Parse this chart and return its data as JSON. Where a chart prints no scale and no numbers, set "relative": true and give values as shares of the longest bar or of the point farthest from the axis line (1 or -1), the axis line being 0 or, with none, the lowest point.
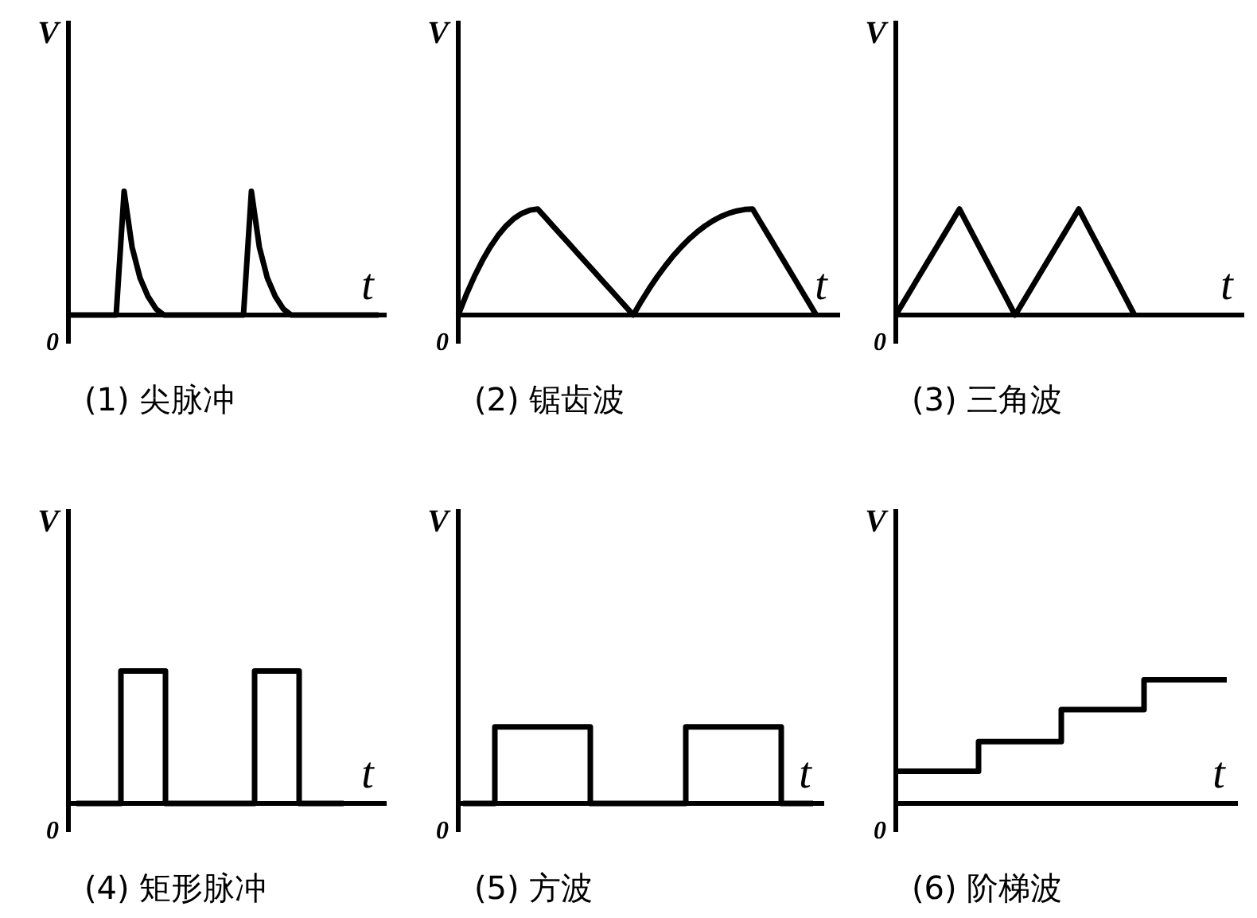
{
  "chart_data": [
    {
      "type": "line",
      "title": "(1) 尖脉冲",
      "xlabel": "t",
      "ylabel": "V",
      "annotations": [
        "0"
      ],
      "relative": true,
      "categories": [
        null,
        null,
        null,
        null,
        null,
        null,
        null,
        null,
        null,
        null,
        null,
        null,
        null,
        null,
        null,
        null,
        null,
        null,
        null,
        null,
        null,
        null,
        null,
        null,
        null,
        null,
        null,
        null,
        null,
        null,
        null,
        null,
        null,
        null,
        null,
        null,
        null,
        null,
        null,
        null
      ],
      "series": [
        {
          "color": "#000000",
          "values": [
            0,
            0,
            0,
            0,
            0,
            0,
            0,
            1,
            0.55,
            0.3,
            0.15,
            0.05,
            0,
            0,
            0,
            0,
            0,
            0,
            0,
            0,
            0,
            0,
            0,
            1,
            0.55,
            0.3,
            0.15,
            0.05,
            0,
            0,
            0,
            0,
            0,
            0,
            0,
            0,
            0,
            0,
            0,
            0
          ]
        }
      ]
    },
    {
      "type": "line",
      "title": "(2) 锯齿波",
      "xlabel": "t",
      "ylabel": "V",
      "annotations": [
        "0"
      ],
      "relative": true,
      "categories": [
        null,
        null,
        null,
        null,
        null,
        null,
        null,
        null,
        null,
        null,
        null,
        null,
        null,
        null,
        null,
        null,
        null,
        null,
        null,
        null,
        null,
        null,
        null,
        null,
        null,
        null,
        null,
        null,
        null,
        null,
        null,
        null,
        null,
        null,
        null,
        null,
        null,
        null,
        null,
        null,
        null,
        null,
        null,
        null,
        null,
        null
      ],
      "series": [
        {
          "color": "#000000",
          "values": [
            0,
            0.19,
            0.36,
            0.51,
            0.64,
            0.75,
            0.84,
            0.91,
            0.96,
            0.99,
            1,
            0.917,
            0.833,
            0.75,
            0.667,
            0.583,
            0.5,
            0.417,
            0.333,
            0.25,
            0.167,
            0.083,
            0,
            0.129,
            0.249,
            0.36,
            0.462,
            0.556,
            0.64,
            0.716,
            0.782,
            0.84,
            0.889,
            0.929,
            0.96,
            0.982,
            0.996,
            1,
            0.875,
            0.75,
            0.625,
            0.5,
            0.375,
            0.25,
            0.125,
            0
          ]
        }
      ]
    },
    {
      "type": "line",
      "title": "(3) 三角波",
      "xlabel": "t",
      "ylabel": "V",
      "annotations": [
        "0"
      ],
      "relative": true,
      "categories": [
        null,
        null,
        null,
        null,
        null,
        null,
        null,
        null,
        null,
        null,
        null,
        null,
        null,
        null,
        null,
        null,
        null,
        null,
        null,
        null,
        null,
        null,
        null,
        null,
        null,
        null,
        null,
        null,
        null,
        null,
        null
      ],
      "series": [
        {
          "color": "#000000",
          "values": [
            0,
            0.125,
            0.25,
            0.375,
            0.5,
            0.625,
            0.75,
            0.875,
            1,
            0.857,
            0.714,
            0.571,
            0.429,
            0.286,
            0.143,
            0,
            0.125,
            0.25,
            0.375,
            0.5,
            0.625,
            0.75,
            0.875,
            1,
            0.857,
            0.714,
            0.571,
            0.429,
            0.286,
            0.143,
            0
          ]
        }
      ]
    },
    {
      "type": "step",
      "title": "(4) 矩形脉冲",
      "xlabel": "t",
      "ylabel": "V",
      "annotations": [
        "0"
      ],
      "relative": true,
      "categories": [
        null,
        null,
        null,
        null,
        null,
        null,
        null
      ],
      "series": [
        {
          "color": "#000000",
          "values": [
            0,
            1,
            0,
            0,
            1,
            0,
            0
          ]
        }
      ]
    },
    {
      "type": "step",
      "title": "(5) 方波",
      "xlabel": "t",
      "ylabel": "V",
      "annotations": [
        "0"
      ],
      "relative": true,
      "categories": [
        null,
        null,
        null,
        null,
        null,
        null,
        null,
        null,
        null,
        null,
        null,
        null
      ],
      "series": [
        {
          "color": "#000000",
          "values": [
            0,
            1,
            1,
            1,
            0,
            0,
            0,
            1,
            1,
            1,
            0,
            0
          ]
        }
      ]
    },
    {
      "type": "step",
      "title": "(6) 阶梯波",
      "xlabel": "t",
      "ylabel": "V",
      "annotations": [
        "0"
      ],
      "relative": true,
      "categories": [
        null,
        null,
        null,
        null,
        null
      ],
      "series": [
        {
          "color": "#000000",
          "values": [
            0.26,
            0.5,
            0.76,
            1,
            1
          ]
        }
      ]
    }
  ]
}
